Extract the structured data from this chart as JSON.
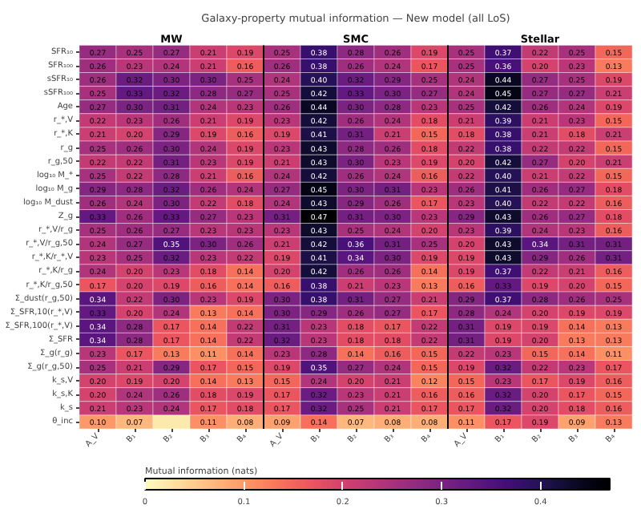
{
  "chart_data": {
    "type": "heatmap",
    "title": "Galaxy-property mutual information — New model (all LoS)",
    "annotations": [
      "MW",
      "SMC",
      "Stellar"
    ],
    "categories": [
      "A_V",
      "B₁",
      "B₂",
      "B₃",
      "B₄",
      "A_V",
      "B₁",
      "B₂",
      "B₃",
      "B₄",
      "A_V",
      "B₁",
      "B₂",
      "B₃",
      "B₄"
    ],
    "y_categories": [
      "SFR₁₀",
      "SFR₁₀₀",
      "sSFR₁₀",
      "sSFR₁₀₀",
      "Age",
      "r_*,V",
      "r_*,K",
      "r_g",
      "r_g,50",
      "log₁₀ M_*",
      "log₁₀ M_g",
      "log₁₀ M_dust",
      "Z_g",
      "r_*,V/r_g",
      "r_*,V/r_g,50",
      "r_*,K/r_*,V",
      "r_*,K/r_g",
      "r_*,K/r_g,50",
      "Σ_dust(r_g,50)",
      "Σ_SFR,10(r_*,V)",
      "Σ_SFR,100(r_*,V)",
      "Σ_SFR",
      "Σ_g(r_g)",
      "Σ_g(r_g,50)",
      "k_s,V",
      "k_s,K",
      "k_s",
      "θ_inc"
    ],
    "cells": [
      [
        0.27,
        0.25,
        0.27,
        0.21,
        0.19,
        0.25,
        0.38,
        0.28,
        0.26,
        0.19,
        0.25,
        0.37,
        0.22,
        0.25,
        0.15
      ],
      [
        0.26,
        0.23,
        0.24,
        0.21,
        0.16,
        0.26,
        0.38,
        0.26,
        0.24,
        0.17,
        0.25,
        0.36,
        0.2,
        0.23,
        0.13
      ],
      [
        0.26,
        0.32,
        0.3,
        0.3,
        0.25,
        0.24,
        0.4,
        0.32,
        0.29,
        0.25,
        0.24,
        0.44,
        0.27,
        0.25,
        0.19
      ],
      [
        0.25,
        0.33,
        0.32,
        0.28,
        0.27,
        0.25,
        0.42,
        0.33,
        0.3,
        0.27,
        0.24,
        0.45,
        0.27,
        0.27,
        0.21
      ],
      [
        0.27,
        0.3,
        0.31,
        0.24,
        0.23,
        0.26,
        0.44,
        0.3,
        0.28,
        0.23,
        0.25,
        0.42,
        0.26,
        0.24,
        0.19
      ],
      [
        0.22,
        0.23,
        0.26,
        0.21,
        0.19,
        0.23,
        0.42,
        0.26,
        0.24,
        0.18,
        0.21,
        0.39,
        0.21,
        0.23,
        0.15
      ],
      [
        0.21,
        0.2,
        0.29,
        0.19,
        0.16,
        0.19,
        0.41,
        0.31,
        0.21,
        0.15,
        0.18,
        0.38,
        0.21,
        0.18,
        0.21
      ],
      [
        0.25,
        0.26,
        0.3,
        0.24,
        0.19,
        0.23,
        0.43,
        0.28,
        0.26,
        0.18,
        0.22,
        0.38,
        0.22,
        0.22,
        0.15
      ],
      [
        0.22,
        0.22,
        0.31,
        0.23,
        0.19,
        0.21,
        0.43,
        0.3,
        0.23,
        0.19,
        0.2,
        0.42,
        0.27,
        0.2,
        0.21
      ],
      [
        0.25,
        0.22,
        0.28,
        0.21,
        0.16,
        0.24,
        0.42,
        0.26,
        0.24,
        0.16,
        0.22,
        0.4,
        0.21,
        0.22,
        0.15
      ],
      [
        0.29,
        0.28,
        0.32,
        0.26,
        0.24,
        0.27,
        0.45,
        0.3,
        0.31,
        0.23,
        0.26,
        0.41,
        0.26,
        0.27,
        0.18
      ],
      [
        0.26,
        0.24,
        0.3,
        0.22,
        0.18,
        0.24,
        0.43,
        0.29,
        0.26,
        0.17,
        0.23,
        0.4,
        0.22,
        0.22,
        0.16
      ],
      [
        0.33,
        0.26,
        0.33,
        0.27,
        0.23,
        0.31,
        0.47,
        0.31,
        0.3,
        0.23,
        0.29,
        0.43,
        0.26,
        0.27,
        0.18
      ],
      [
        0.25,
        0.26,
        0.27,
        0.23,
        0.23,
        0.23,
        0.43,
        0.25,
        0.24,
        0.2,
        0.23,
        0.39,
        0.24,
        0.23,
        0.16
      ],
      [
        0.24,
        0.27,
        0.35,
        0.3,
        0.26,
        0.21,
        0.42,
        0.36,
        0.31,
        0.25,
        0.2,
        0.43,
        0.34,
        0.31,
        0.31
      ],
      [
        0.23,
        0.25,
        0.32,
        0.23,
        0.22,
        0.19,
        0.41,
        0.34,
        0.3,
        0.19,
        0.19,
        0.43,
        0.29,
        0.26,
        0.31
      ],
      [
        0.24,
        0.2,
        0.23,
        0.18,
        0.14,
        0.2,
        0.42,
        0.26,
        0.26,
        0.14,
        0.19,
        0.37,
        0.22,
        0.21,
        0.16
      ],
      [
        0.17,
        0.2,
        0.19,
        0.16,
        0.14,
        0.16,
        0.38,
        0.21,
        0.23,
        0.13,
        0.16,
        0.33,
        0.19,
        0.2,
        0.15
      ],
      [
        0.34,
        0.22,
        0.3,
        0.23,
        0.19,
        0.3,
        0.38,
        0.31,
        0.27,
        0.21,
        0.29,
        0.37,
        0.28,
        0.26,
        0.25
      ],
      [
        0.33,
        0.2,
        0.24,
        0.13,
        0.14,
        0.3,
        0.29,
        0.26,
        0.27,
        0.17,
        0.28,
        0.24,
        0.2,
        0.19,
        0.19
      ],
      [
        0.34,
        0.28,
        0.17,
        0.14,
        0.22,
        0.31,
        0.23,
        0.18,
        0.17,
        0.22,
        0.31,
        0.19,
        0.19,
        0.14,
        0.13
      ],
      [
        0.34,
        0.28,
        0.17,
        0.14,
        0.22,
        0.32,
        0.23,
        0.18,
        0.18,
        0.22,
        0.31,
        0.19,
        0.2,
        0.13,
        0.13
      ],
      [
        0.23,
        0.17,
        0.13,
        0.11,
        0.14,
        0.23,
        0.28,
        0.14,
        0.16,
        0.15,
        0.22,
        0.23,
        0.15,
        0.14,
        0.11
      ],
      [
        0.25,
        0.21,
        0.29,
        0.17,
        0.15,
        0.19,
        0.35,
        0.27,
        0.24,
        0.15,
        0.19,
        0.32,
        0.22,
        0.23,
        0.17
      ],
      [
        0.2,
        0.19,
        0.2,
        0.14,
        0.13,
        0.15,
        0.24,
        0.2,
        0.21,
        0.12,
        0.15,
        0.23,
        0.17,
        0.19,
        0.16
      ],
      [
        0.2,
        0.24,
        0.26,
        0.18,
        0.19,
        0.17,
        0.32,
        0.23,
        0.21,
        0.16,
        0.16,
        0.32,
        0.2,
        0.17,
        0.15
      ],
      [
        0.21,
        0.23,
        0.24,
        0.17,
        0.18,
        0.17,
        0.32,
        0.25,
        0.21,
        0.17,
        0.17,
        0.32,
        0.2,
        0.18,
        0.16
      ],
      [
        0.1,
        0.07,
        0.02,
        0.11,
        0.08,
        0.09,
        0.14,
        0.07,
        0.08,
        0.08,
        0.11,
        0.17,
        0.19,
        0.09,
        0.13
      ]
    ],
    "cell_labels": [
      [
        "0.27",
        "0.25",
        "0.27",
        "0.21",
        "0.19",
        "0.25",
        "0.38",
        "0.28",
        "0.26",
        "0.19",
        "0.25",
        "0.37",
        "0.22",
        "0.25",
        "0.15"
      ],
      [
        "0.26",
        "0.23",
        "0.24",
        "0.21",
        "0.16",
        "0.26",
        "0.38",
        "0.26",
        "0.24",
        "0.17",
        "0.25",
        "0.36",
        "0.20",
        "0.23",
        "0.13"
      ],
      [
        "0.26",
        "0.32",
        "0.30",
        "0.30",
        "0.25",
        "0.24",
        "0.40",
        "0.32",
        "0.29",
        "0.25",
        "0.24",
        "0.44",
        "0.27",
        "0.25",
        "0.19"
      ],
      [
        "0.25",
        "0.33",
        "0.32",
        "0.28",
        "0.27",
        "0.25",
        "0.42",
        "0.33",
        "0.30",
        "0.27",
        "0.24",
        "0.45",
        "0.27",
        "0.27",
        "0.21"
      ],
      [
        "0.27",
        "0.30",
        "0.31",
        "0.24",
        "0.23",
        "0.26",
        "0.44",
        "0.30",
        "0.28",
        "0.23",
        "0.25",
        "0.42",
        "0.26",
        "0.24",
        "0.19"
      ],
      [
        "0.22",
        "0.23",
        "0.26",
        "0.21",
        "0.19",
        "0.23",
        "0.42",
        "0.26",
        "0.24",
        "0.18",
        "0.21",
        "0.39",
        "0.21",
        "0.23",
        "0.15"
      ],
      [
        "0.21",
        "0.20",
        "0.29",
        "0.19",
        "0.16",
        "0.19",
        "0.41",
        "0.31",
        "0.21",
        "0.15",
        "0.18",
        "0.38",
        "0.21",
        "0.18",
        "0.21"
      ],
      [
        "0.25",
        "0.26",
        "0.30",
        "0.24",
        "0.19",
        "0.23",
        "0.43",
        "0.28",
        "0.26",
        "0.18",
        "0.22",
        "0.38",
        "0.22",
        "0.22",
        "0.15"
      ],
      [
        "0.22",
        "0.22",
        "0.31",
        "0.23",
        "0.19",
        "0.21",
        "0.43",
        "0.30",
        "0.23",
        "0.19",
        "0.20",
        "0.42",
        "0.27",
        "0.20",
        "0.21"
      ],
      [
        "0.25",
        "0.22",
        "0.28",
        "0.21",
        "0.16",
        "0.24",
        "0.42",
        "0.26",
        "0.24",
        "0.16",
        "0.22",
        "0.40",
        "0.21",
        "0.22",
        "0.15"
      ],
      [
        "0.29",
        "0.28",
        "0.32",
        "0.26",
        "0.24",
        "0.27",
        "0.45",
        "0.30",
        "0.31",
        "0.23",
        "0.26",
        "0.41",
        "0.26",
        "0.27",
        "0.18"
      ],
      [
        "0.26",
        "0.24",
        "0.30",
        "0.22",
        "0.18",
        "0.24",
        "0.43",
        "0.29",
        "0.26",
        "0.17",
        "0.23",
        "0.40",
        "0.22",
        "0.22",
        "0.16"
      ],
      [
        "0.33",
        "0.26",
        "0.33",
        "0.27",
        "0.23",
        "0.31",
        "0.47",
        "0.31",
        "0.30",
        "0.23",
        "0.29",
        "0.43",
        "0.26",
        "0.27",
        "0.18"
      ],
      [
        "0.25",
        "0.26",
        "0.27",
        "0.23",
        "0.23",
        "0.23",
        "0.43",
        "0.25",
        "0.24",
        "0.20",
        "0.23",
        "0.39",
        "0.24",
        "0.23",
        "0.16"
      ],
      [
        "0.24",
        "0.27",
        "0.35",
        "0.30",
        "0.26",
        "0.21",
        "0.42",
        "0.36",
        "0.31",
        "0.25",
        "0.20",
        "0.43",
        "0.34",
        "0.31",
        "0.31"
      ],
      [
        "0.23",
        "0.25",
        "0.32",
        "0.23",
        "0.22",
        "0.19",
        "0.41",
        "0.34",
        "0.30",
        "0.19",
        "0.19",
        "0.43",
        "0.29",
        "0.26",
        "0.31"
      ],
      [
        "0.24",
        "0.20",
        "0.23",
        "0.18",
        "0.14",
        "0.20",
        "0.42",
        "0.26",
        "0.26",
        "0.14",
        "0.19",
        "0.37",
        "0.22",
        "0.21",
        "0.16"
      ],
      [
        "0.17",
        "0.20",
        "0.19",
        "0.16",
        "0.14",
        "0.16",
        "0.38",
        "0.21",
        "0.23",
        "0.13",
        "0.16",
        "0.33",
        "0.19",
        "0.20",
        "0.15"
      ],
      [
        "0.34",
        "0.22",
        "0.30",
        "0.23",
        "0.19",
        "0.30",
        "0.38",
        "0.31",
        "0.27",
        "0.21",
        "0.29",
        "0.37",
        "0.28",
        "0.26",
        "0.25"
      ],
      [
        "0.33",
        "0.20",
        "0.24",
        "0.13",
        "0.14",
        "0.30",
        "0.29",
        "0.26",
        "0.27",
        "0.17",
        "0.28",
        "0.24",
        "0.20",
        "0.19",
        "0.19"
      ],
      [
        "0.34",
        "0.28",
        "0.17",
        "0.14",
        "0.22",
        "0.31",
        "0.23",
        "0.18",
        "0.17",
        "0.22",
        "0.31",
        "0.19",
        "0.19",
        "0.14",
        "0.13"
      ],
      [
        "0.34",
        "0.28",
        "0.17",
        "0.14",
        "0.22",
        "0.32",
        "0.23",
        "0.18",
        "0.18",
        "0.22",
        "0.31",
        "0.19",
        "0.20",
        "0.13",
        "0.13"
      ],
      [
        "0.23",
        "0.17",
        "0.13",
        "0.11",
        "0.14",
        "0.23",
        "0.28",
        "0.14",
        "0.16",
        "0.15",
        "0.22",
        "0.23",
        "0.15",
        "0.14",
        "0.11"
      ],
      [
        "0.25",
        "0.21",
        "0.29",
        "0.17",
        "0.15",
        "0.19",
        "0.35",
        "0.27",
        "0.24",
        "0.15",
        "0.19",
        "0.32",
        "0.22",
        "0.23",
        "0.17"
      ],
      [
        "0.20",
        "0.19",
        "0.20",
        "0.14",
        "0.13",
        "0.15",
        "0.24",
        "0.20",
        "0.21",
        "0.12",
        "0.15",
        "0.23",
        "0.17",
        "0.19",
        "0.16"
      ],
      [
        "0.20",
        "0.24",
        "0.26",
        "0.18",
        "0.19",
        "0.17",
        "0.32",
        "0.23",
        "0.21",
        "0.16",
        "0.16",
        "0.32",
        "0.20",
        "0.17",
        "0.15"
      ],
      [
        "0.21",
        "0.23",
        "0.24",
        "0.17",
        "0.18",
        "0.17",
        "0.32",
        "0.25",
        "0.21",
        "0.17",
        "0.17",
        "0.32",
        "0.20",
        "0.18",
        "0.16"
      ],
      [
        "0.10",
        "0.07",
        null,
        "0.11",
        "0.08",
        "0.09",
        "0.14",
        "0.07",
        "0.08",
        "0.08",
        "0.11",
        "0.17",
        "0.19",
        "0.09",
        "0.13"
      ]
    ],
    "clim": [
      0,
      0.47
    ],
    "cticks": [
      0.0,
      0.1,
      0.2,
      0.3,
      0.4
    ],
    "clabel": "Mutual information (nats)"
  }
}
